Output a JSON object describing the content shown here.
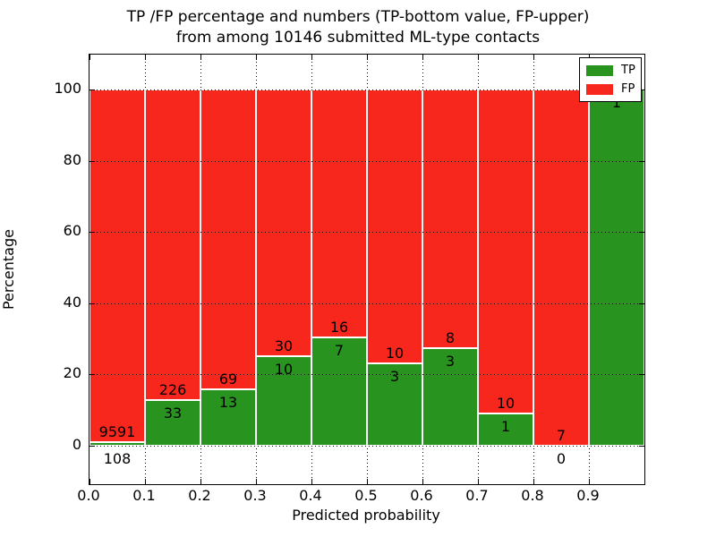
{
  "title": {
    "line1": "TP /FP percentage and numbers (TP-bottom value, FP-upper)",
    "line2": "from among 10146 submitted ML-type contacts"
  },
  "axes": {
    "x_label": "Predicted probability",
    "y_label": "Percentage",
    "x_ticks": [
      "0.0",
      "0.1",
      "0.2",
      "0.3",
      "0.4",
      "0.5",
      "0.6",
      "0.7",
      "0.8",
      "0.9"
    ],
    "y_ticks": [
      0,
      20,
      40,
      60,
      80,
      100
    ],
    "ylim_display": [
      0,
      100
    ]
  },
  "legend": {
    "position": "upper right",
    "entries": [
      {
        "label": "TP",
        "color": "#28941f"
      },
      {
        "label": "FP",
        "color": "#f8271d"
      }
    ]
  },
  "colors": {
    "tp_green": "#28941f",
    "fp_red": "#f8271d",
    "bar_edge": "#ffffff",
    "grid": "#000000",
    "background": "#ffffff"
  },
  "chart_data": {
    "type": "bar",
    "stacked": true,
    "normalized_to_percent": 100,
    "total_contacts": 10146,
    "title": "TP /FP percentage and numbers (TP-bottom value, FP-upper) from among 10146 submitted ML-type contacts",
    "xlabel": "Predicted probability",
    "ylabel": "Percentage",
    "grid": "dotted",
    "legend_position": "upper right",
    "categories": [
      "0.0-0.1",
      "0.1-0.2",
      "0.2-0.3",
      "0.3-0.4",
      "0.4-0.5",
      "0.5-0.6",
      "0.6-0.7",
      "0.7-0.8",
      "0.8-0.9",
      "0.9-1.0"
    ],
    "series": [
      {
        "name": "TP",
        "values": [
          108,
          33,
          13,
          10,
          7,
          3,
          3,
          1,
          0,
          1
        ]
      },
      {
        "name": "FP",
        "values": [
          9591,
          226,
          69,
          30,
          16,
          10,
          8,
          10,
          7,
          0
        ]
      }
    ],
    "tp_percent": [
      1.11,
      12.74,
      15.85,
      25.0,
      30.43,
      23.08,
      27.27,
      9.09,
      0.0,
      100.0
    ],
    "bars": [
      {
        "bin": "0.0",
        "tp": 108,
        "fp": 9591,
        "tp_pct": 1.11,
        "fp_label": "9591",
        "tp_label": "108"
      },
      {
        "bin": "0.1",
        "tp": 33,
        "fp": 226,
        "tp_pct": 12.74,
        "fp_label": "226",
        "tp_label": "33"
      },
      {
        "bin": "0.2",
        "tp": 13,
        "fp": 69,
        "tp_pct": 15.85,
        "fp_label": "69",
        "tp_label": "13"
      },
      {
        "bin": "0.3",
        "tp": 10,
        "fp": 30,
        "tp_pct": 25.0,
        "fp_label": "30",
        "tp_label": "10"
      },
      {
        "bin": "0.4",
        "tp": 7,
        "fp": 16,
        "tp_pct": 30.43,
        "fp_label": "16",
        "tp_label": "7"
      },
      {
        "bin": "0.5",
        "tp": 3,
        "fp": 10,
        "tp_pct": 23.08,
        "fp_label": "10",
        "tp_label": "3"
      },
      {
        "bin": "0.6",
        "tp": 3,
        "fp": 8,
        "tp_pct": 27.27,
        "fp_label": "8",
        "tp_label": "3"
      },
      {
        "bin": "0.7",
        "tp": 1,
        "fp": 10,
        "tp_pct": 9.09,
        "fp_label": "10",
        "tp_label": "1"
      },
      {
        "bin": "0.8",
        "tp": 0,
        "fp": 7,
        "tp_pct": 0.0,
        "fp_label": "7",
        "tp_label": "0"
      },
      {
        "bin": "0.9",
        "tp": 1,
        "fp": 0,
        "tp_pct": 100.0,
        "fp_label": null,
        "tp_label": "1"
      }
    ]
  }
}
